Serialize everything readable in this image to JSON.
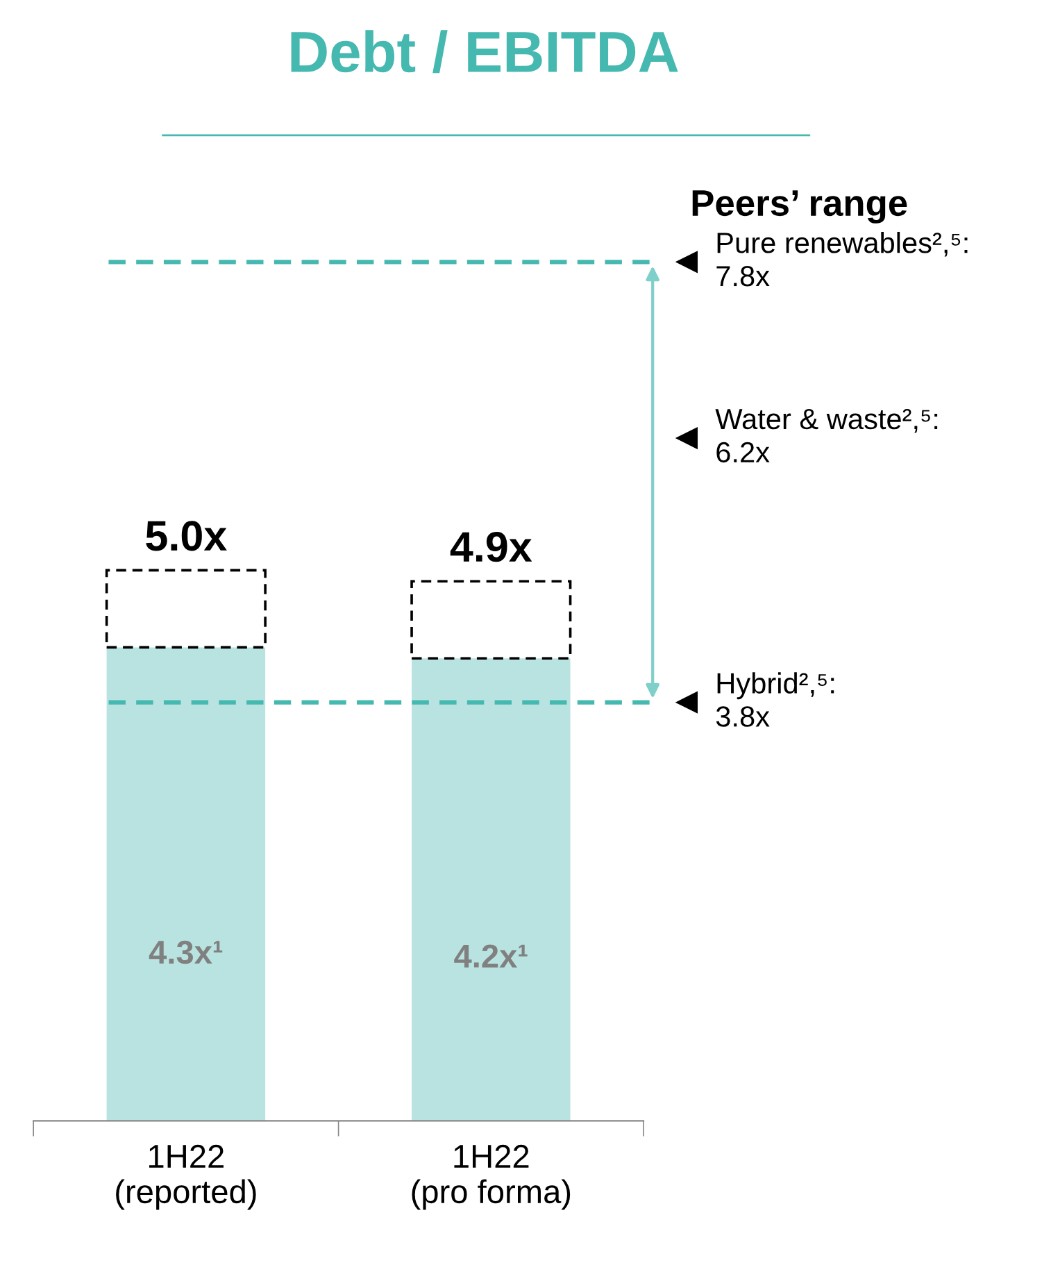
{
  "chart_data": {
    "type": "bar",
    "title": "Debt / EBITDA",
    "categories": [
      "1H22\n(reported)",
      "1H22\n(pro forma)"
    ],
    "stacked": true,
    "series": [
      {
        "color": "#b9e3e1",
        "values": [
          4.3,
          4.2
        ],
        "value_labels": [
          "4.3x¹",
          "4.2x¹"
        ]
      },
      {
        "color": "#000000",
        "line_style": "dashed",
        "values": [
          0.7,
          0.7
        ]
      }
    ],
    "totals": [
      "5.0x",
      "4.9x"
    ],
    "tick_labels": "x",
    "grid": false,
    "ref_lines": [
      {
        "axis": "y",
        "value": 7.8,
        "label": "Pure renewables²,⁵:\n7.8x",
        "color": "#45b8b0",
        "line_style": "dashed"
      },
      {
        "axis": "y",
        "value": 3.8,
        "label": "Hybrid²,⁵:\n3.8x",
        "color": "#45b8b0",
        "line_style": "dashed"
      }
    ],
    "annotations": [
      "Peers’ range",
      "Water & waste²,⁵:\n6.2x"
    ]
  }
}
